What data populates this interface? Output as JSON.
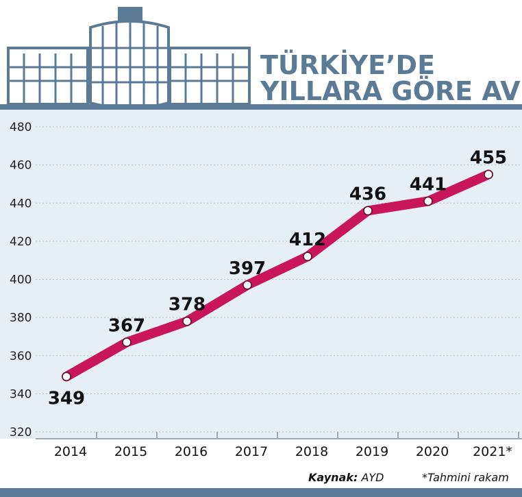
{
  "header": {
    "title_line1": "TÜRKİYE’DE",
    "title_line2": "YILLARA GÖRE AVM SAYISI"
  },
  "colors": {
    "accent": "#5b7a95",
    "line": "#c9165a",
    "plot_bg": "#e6eef6"
  },
  "chart_data": {
    "type": "line",
    "title": "TÜRKİYE’DE YILLARA GÖRE AVM SAYISI",
    "categories": [
      "2014",
      "2015",
      "2016",
      "2017",
      "2018",
      "2019",
      "2020",
      "2021*"
    ],
    "values": [
      349,
      367,
      378,
      397,
      412,
      436,
      441,
      455
    ],
    "ylim": [
      320,
      480
    ],
    "yticks": [
      320,
      340,
      360,
      380,
      400,
      420,
      440,
      460,
      480
    ],
    "grid": true
  },
  "footer": {
    "source_label": "Kaynak:",
    "source_value": "AYD",
    "note": "*Tahmini rakam"
  }
}
